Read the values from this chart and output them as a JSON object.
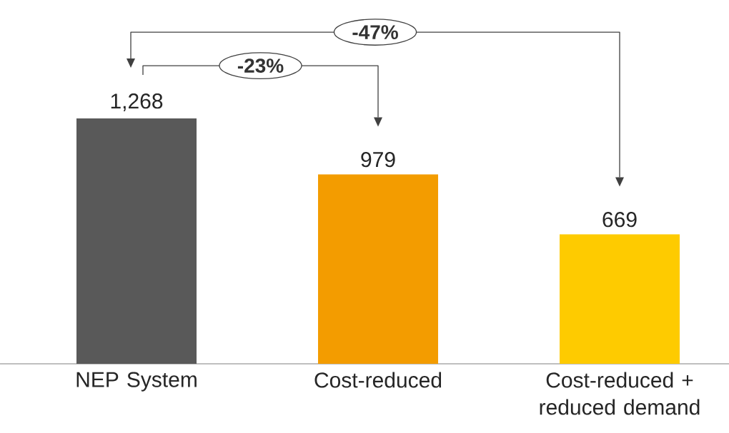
{
  "chart_data": {
    "type": "bar",
    "categories": [
      "NEP System",
      "Cost-reduced",
      "Cost-reduced + reduced demand"
    ],
    "values": [
      1268,
      979,
      669
    ],
    "value_labels": [
      "1,268",
      "979",
      "669"
    ],
    "colors": [
      "#595959",
      "#f39c00",
      "#fecb00"
    ],
    "annotations": [
      "-47%",
      "-23%"
    ]
  }
}
